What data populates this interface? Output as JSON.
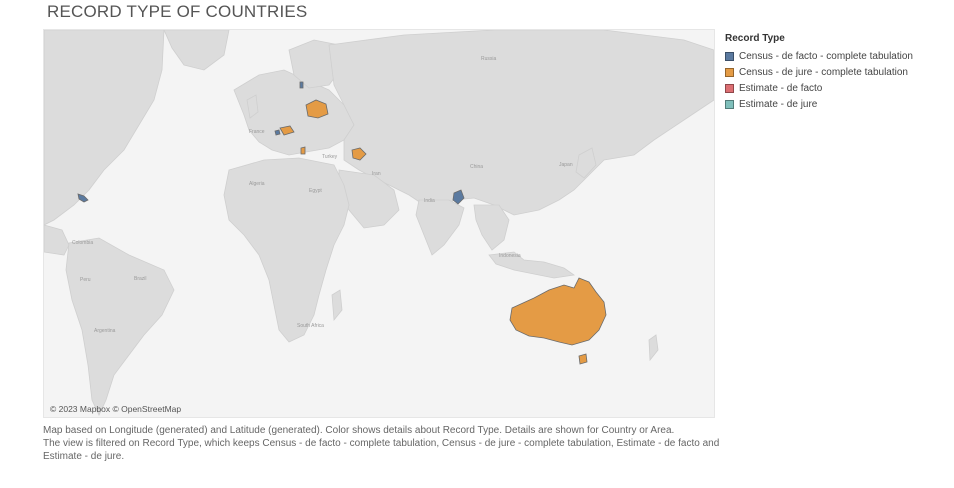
{
  "title": "RECORD TYPE OF COUNTRIES",
  "legend": {
    "title": "Record Type",
    "items": [
      {
        "label": "Census - de facto - complete tabulation",
        "color": "#5b7aa0"
      },
      {
        "label": "Census - de jure - complete tabulation",
        "color": "#e49b45"
      },
      {
        "label": "Estimate - de facto",
        "color": "#dc6e72"
      },
      {
        "label": "Estimate - de jure",
        "color": "#7fbfbb"
      }
    ]
  },
  "map": {
    "attribution": "© 2023 Mapbox © OpenStreetMap",
    "place_labels": [
      "Russia",
      "France",
      "Turkey",
      "Iran",
      "Algeria",
      "Egypt",
      "China",
      "India",
      "Japan",
      "Indonesia",
      "Colombia",
      "Brazil",
      "Peru",
      "Argentina",
      "South Africa"
    ]
  },
  "caption": {
    "line1": "Map based on Longitude (generated) and Latitude (generated). Color shows details about Record Type. Details are shown for Country or Area.",
    "line2": "The view is filtered on Record Type, which keeps Census - de facto - complete tabulation, Census - de jure - complete tabulation, Estimate - de facto and Estimate - de jure."
  }
}
